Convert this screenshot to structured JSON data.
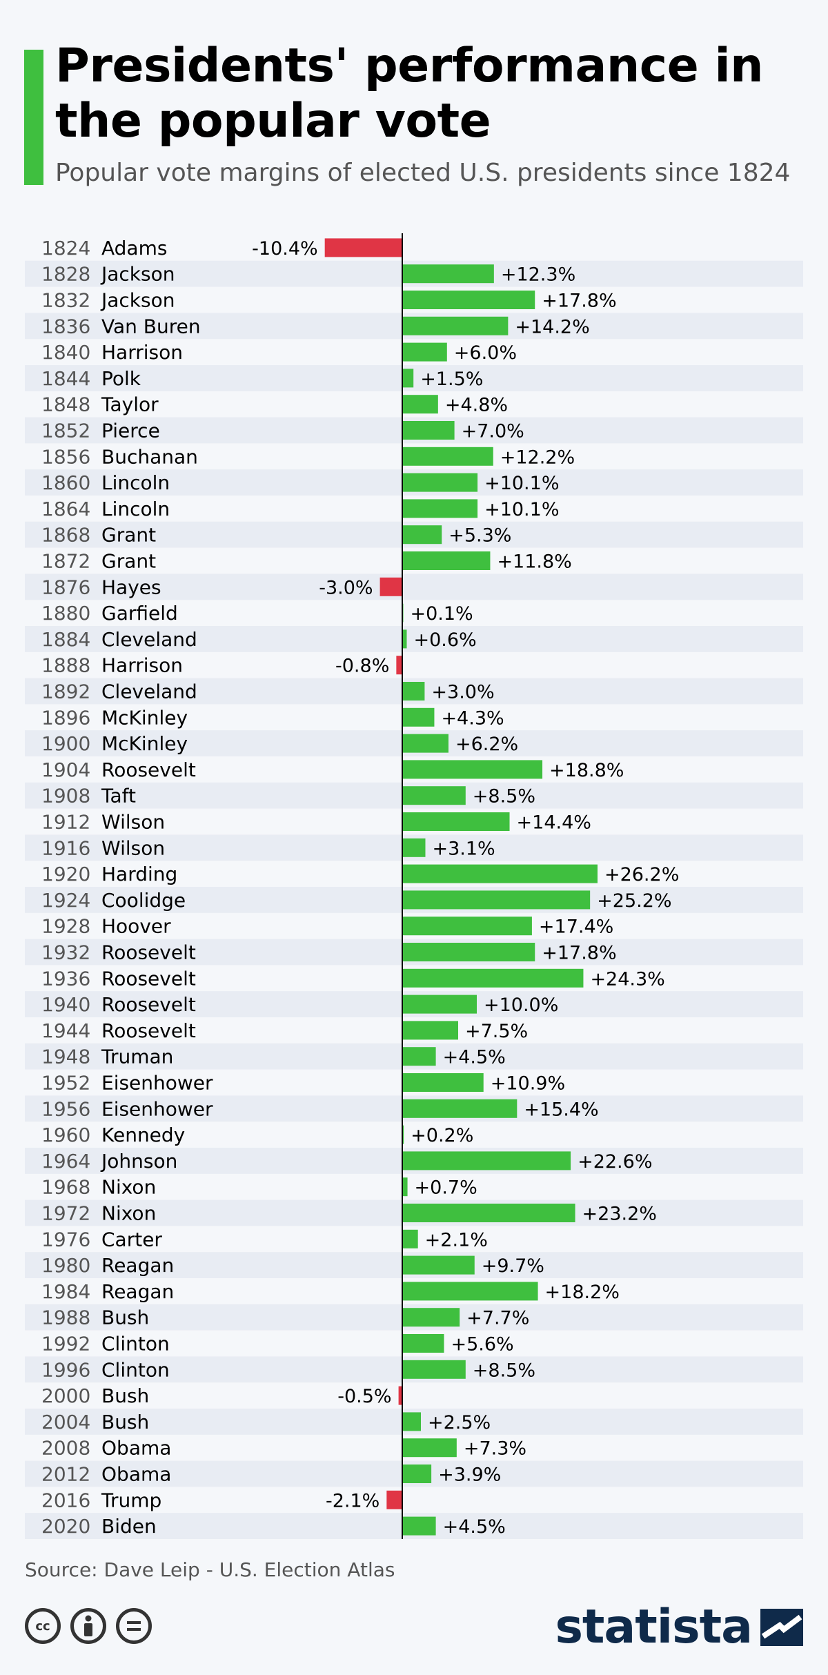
{
  "header": {
    "title": "Presidents' performance in the popular vote",
    "subtitle": "Popular vote margins of elected U.S. presidents since 1824"
  },
  "footer": {
    "source": "Source: Dave Leip - U.S. Election Atlas",
    "brand": "statista",
    "license_icons": [
      "cc-icon",
      "attribution-icon",
      "no-derivatives-icon"
    ]
  },
  "colors": {
    "positive": "#3fbf3f",
    "negative": "#e03545",
    "accent": "#3fbf3f",
    "row_stripe": "#e8ecf3",
    "brand": "#0f2a4a"
  },
  "chart_data": {
    "type": "bar",
    "orientation": "horizontal",
    "title": "Presidents' performance in the popular vote",
    "subtitle": "Popular vote margins of elected U.S. presidents since 1824",
    "unit": "%",
    "xlim": [
      -10.4,
      26.2
    ],
    "years": [
      "1824",
      "1828",
      "1832",
      "1836",
      "1840",
      "1844",
      "1848",
      "1852",
      "1856",
      "1860",
      "1864",
      "1868",
      "1872",
      "1876",
      "1880",
      "1884",
      "1888",
      "1892",
      "1896",
      "1900",
      "1904",
      "1908",
      "1912",
      "1916",
      "1920",
      "1924",
      "1928",
      "1932",
      "1936",
      "1940",
      "1944",
      "1948",
      "1952",
      "1956",
      "1960",
      "1964",
      "1968",
      "1972",
      "1976",
      "1980",
      "1984",
      "1988",
      "1992",
      "1996",
      "2000",
      "2004",
      "2008",
      "2012",
      "2016",
      "2020"
    ],
    "categories": [
      "Adams",
      "Jackson",
      "Jackson",
      "Van Buren",
      "Harrison",
      "Polk",
      "Taylor",
      "Pierce",
      "Buchanan",
      "Lincoln",
      "Lincoln",
      "Grant",
      "Grant",
      "Hayes",
      "Garfield",
      "Cleveland",
      "Harrison",
      "Cleveland",
      "McKinley",
      "McKinley",
      "Roosevelt",
      "Taft",
      "Wilson",
      "Wilson",
      "Harding",
      "Coolidge",
      "Hoover",
      "Roosevelt",
      "Roosevelt",
      "Roosevelt",
      "Roosevelt",
      "Truman",
      "Eisenhower",
      "Eisenhower",
      "Kennedy",
      "Johnson",
      "Nixon",
      "Nixon",
      "Carter",
      "Reagan",
      "Reagan",
      "Bush",
      "Clinton",
      "Clinton",
      "Bush",
      "Bush",
      "Obama",
      "Obama",
      "Trump",
      "Biden"
    ],
    "values": [
      -10.4,
      12.3,
      17.8,
      14.2,
      6.0,
      1.5,
      4.8,
      7.0,
      12.2,
      10.1,
      10.1,
      5.3,
      11.8,
      -3.0,
      0.1,
      0.6,
      -0.8,
      3.0,
      4.3,
      6.2,
      18.8,
      8.5,
      14.4,
      3.1,
      26.2,
      25.2,
      17.4,
      17.8,
      24.3,
      10.0,
      7.5,
      4.5,
      10.9,
      15.4,
      0.2,
      22.6,
      0.7,
      23.2,
      2.1,
      9.7,
      18.2,
      7.7,
      5.6,
      8.5,
      -0.5,
      2.5,
      7.3,
      3.9,
      -2.1,
      4.5
    ],
    "labels": [
      "-10.4%",
      "+12.3%",
      "+17.8%",
      "+14.2%",
      "+6.0%",
      "+1.5%",
      "+4.8%",
      "+7.0%",
      "+12.2%",
      "+10.1%",
      "+10.1%",
      "+5.3%",
      "+11.8%",
      "-3.0%",
      "+0.1%",
      "+0.6%",
      "-0.8%",
      "+3.0%",
      "+4.3%",
      "+6.2%",
      "+18.8%",
      "+8.5%",
      "+14.4%",
      "+3.1%",
      "+26.2%",
      "+25.2%",
      "+17.4%",
      "+17.8%",
      "+24.3%",
      "+10.0%",
      "+7.5%",
      "+4.5%",
      "+10.9%",
      "+15.4%",
      "+0.2%",
      "+22.6%",
      "+0.7%",
      "+23.2%",
      "+2.1%",
      "+9.7%",
      "+18.2%",
      "+7.7%",
      "+5.6%",
      "+8.5%",
      "-0.5%",
      "+2.5%",
      "+7.3%",
      "+3.9%",
      "-2.1%",
      "+4.5%"
    ]
  }
}
